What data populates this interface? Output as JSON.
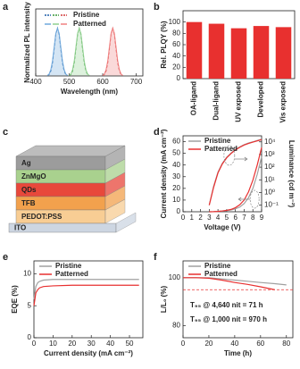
{
  "chart_data": [
    {
      "type": "spectra",
      "panel": "a",
      "xlabel": "Wavelength (nm)",
      "ylabel": "Normalized PL intensity",
      "xlim": [
        400,
        720
      ],
      "xticks": [
        400,
        500,
        600,
        700
      ],
      "ylim": [
        0,
        1.4
      ],
      "series": [
        {
          "name": "Pristine",
          "dash": true,
          "curves": [
            {
              "color": "#1f5fa8",
              "x": [
                435,
                440,
                445,
                450,
                455,
                460,
                465,
                470,
                475,
                480,
                485,
                490,
                495
              ],
              "values": [
                0.01,
                0.03,
                0.1,
                0.27,
                0.56,
                0.87,
                1,
                0.87,
                0.56,
                0.27,
                0.1,
                0.03,
                0.01
              ]
            },
            {
              "color": "#3a9a3a",
              "x": [
                500,
                505,
                510,
                515,
                520,
                525,
                530,
                535,
                540,
                545,
                550,
                555,
                560
              ],
              "values": [
                0.01,
                0.03,
                0.1,
                0.27,
                0.56,
                0.87,
                1,
                0.87,
                0.56,
                0.27,
                0.1,
                0.03,
                0.01
              ]
            },
            {
              "color": "#d23b3b",
              "x": [
                600,
                605,
                610,
                615,
                620,
                625,
                630,
                635,
                640,
                645,
                650,
                655,
                660
              ],
              "values": [
                0.01,
                0.03,
                0.1,
                0.27,
                0.56,
                0.87,
                1,
                0.87,
                0.56,
                0.27,
                0.1,
                0.03,
                0.01
              ]
            }
          ]
        },
        {
          "name": "Patterned",
          "dash": false,
          "curves": [
            {
              "color": "#6fa8dc",
              "x": [
                435,
                440,
                445,
                450,
                455,
                460,
                465,
                470,
                475,
                480,
                485,
                490,
                495
              ],
              "values": [
                0.01,
                0.04,
                0.13,
                0.31,
                0.6,
                0.89,
                1,
                0.89,
                0.6,
                0.31,
                0.13,
                0.04,
                0.01
              ]
            },
            {
              "color": "#8fd08f",
              "x": [
                500,
                505,
                510,
                515,
                520,
                525,
                530,
                535,
                540,
                545,
                550,
                555,
                560
              ],
              "values": [
                0.01,
                0.04,
                0.13,
                0.31,
                0.6,
                0.89,
                1,
                0.89,
                0.6,
                0.31,
                0.13,
                0.04,
                0.01
              ]
            },
            {
              "color": "#f08080",
              "x": [
                600,
                605,
                610,
                615,
                620,
                625,
                630,
                635,
                640,
                645,
                650,
                655,
                660
              ],
              "values": [
                0.01,
                0.04,
                0.13,
                0.31,
                0.6,
                0.89,
                1,
                0.89,
                0.6,
                0.31,
                0.13,
                0.04,
                0.01
              ]
            }
          ]
        }
      ]
    },
    {
      "type": "bar",
      "panel": "b",
      "ylabel": "Rel. PLQY (%)",
      "categories": [
        "OA-ligand",
        "Dual-ligand",
        "UV exposed",
        "Developed",
        "Vis exposed"
      ],
      "values": [
        100,
        97,
        89,
        93,
        91
      ],
      "color": "#e8302f",
      "ylim": [
        0,
        120
      ],
      "yticks": [
        0,
        20,
        40,
        60,
        80,
        100
      ]
    },
    {
      "type": "line",
      "panel": "d",
      "xlabel": "Voltage (V)",
      "ylabel": "Current density (mA cm⁻²)",
      "y2label": "Luminance (cd m⁻²)",
      "x": [
        3,
        3.5,
        4,
        4.5,
        5,
        5.5,
        6,
        6.5,
        7,
        7.5,
        8,
        8.5,
        9
      ],
      "xlim": [
        0,
        9
      ],
      "xticks": [
        0,
        1,
        2,
        3,
        4,
        5,
        6,
        7,
        8,
        9
      ],
      "ylim": [
        0,
        65
      ],
      "yticks": [
        0,
        10,
        20,
        30,
        40,
        50,
        60
      ],
      "y2log": true,
      "y2lim": [
        0.03,
        30000
      ],
      "y2ticks": [
        {
          "value": 0.1,
          "label": "10⁻¹"
        },
        {
          "value": 1,
          "label": "10⁰"
        },
        {
          "value": 10,
          "label": "10¹"
        },
        {
          "value": 100,
          "label": "10²"
        },
        {
          "value": 1000,
          "label": "10³"
        },
        {
          "value": 10000,
          "label": "10⁴"
        }
      ],
      "series": [
        {
          "name": "Pristine",
          "color": "#a0a0a0",
          "values": [
            0,
            0.1,
            0.3,
            0.6,
            1,
            1.5,
            2.5,
            4,
            7,
            12,
            20,
            32,
            47
          ],
          "y2_values": [
            0.1,
            3,
            40,
            200,
            600,
            1300,
            2500,
            4000,
            6000,
            8000,
            10000,
            13000,
            16000
          ]
        },
        {
          "name": "Patterned",
          "color": "#e83030",
          "values": [
            0,
            0.1,
            0.3,
            0.7,
            1.2,
            2,
            3.5,
            6,
            10,
            17,
            27,
            40,
            55
          ],
          "y2_values": [
            0.1,
            2.5,
            35,
            180,
            550,
            1200,
            2300,
            3700,
            5600,
            7500,
            9500,
            12000,
            15000
          ]
        }
      ]
    },
    {
      "type": "line",
      "panel": "e",
      "xlabel": "Current density (mA cm⁻²)",
      "ylabel": "EQE (%)",
      "x": [
        0,
        1,
        2,
        3,
        5,
        10,
        20,
        30,
        40,
        50,
        55
      ],
      "xlim": [
        0,
        57
      ],
      "xticks": [
        0,
        10,
        20,
        30,
        40,
        50
      ],
      "ylim": [
        0,
        12
      ],
      "yticks": [
        0,
        5,
        10
      ],
      "series": [
        {
          "name": "Pristine",
          "color": "#a0a0a0",
          "values": [
            6,
            8,
            8.6,
            8.8,
            9,
            9.1,
            9.1,
            9.1,
            9.1,
            9.1,
            9.1
          ]
        },
        {
          "name": "Patterned",
          "color": "#e83030",
          "values": [
            5,
            7,
            7.5,
            7.8,
            8,
            8.1,
            8.2,
            8.2,
            8.2,
            8.2,
            8.2
          ]
        }
      ]
    },
    {
      "type": "line",
      "panel": "f",
      "xlabel": "Time (h)",
      "ylabel": "L/L₀ (%)",
      "x": [
        0,
        10,
        20,
        30,
        40,
        50,
        60,
        71,
        80
      ],
      "xlim": [
        0,
        85
      ],
      "xticks": [
        0,
        20,
        40,
        60,
        80
      ],
      "ylim": [
        75,
        107
      ],
      "yticks": [
        80,
        100
      ],
      "reference": 95,
      "annotations": [
        "T₉₅ @ 4,640 nit = 71 h",
        "T₉₅ @ 1,000 nit = 970 h"
      ],
      "series": [
        {
          "name": "Pristine",
          "color": "#a0a0a0",
          "values": [
            100,
            100,
            100,
            99.5,
            99,
            98.5,
            98,
            97.5,
            97
          ]
        },
        {
          "name": "Patterned",
          "color": "#e83030",
          "values": [
            100,
            100,
            99.8,
            99,
            98,
            97.2,
            96.2,
            95,
            null
          ]
        }
      ]
    }
  ],
  "diagram": {
    "panel": "c",
    "layers": [
      "Ag",
      "ZnMgO",
      "QDs",
      "TFB",
      "PEDOT:PSS",
      "ITO"
    ]
  }
}
